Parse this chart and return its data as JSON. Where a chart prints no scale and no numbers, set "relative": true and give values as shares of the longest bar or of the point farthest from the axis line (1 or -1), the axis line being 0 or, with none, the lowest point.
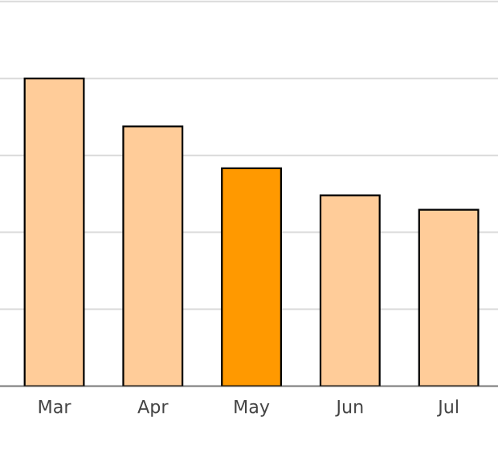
{
  "chart_data": {
    "type": "bar",
    "relative": true,
    "categories": [
      "Mar",
      "Apr",
      "May",
      "Jun",
      "Jul"
    ],
    "values": [
      1,
      0.844,
      0.708,
      0.62,
      0.573
    ],
    "colors": [
      "#ffcc99",
      "#ffcc99",
      "#ff9900",
      "#ffcc99",
      "#ffcc99"
    ],
    "grid": "y",
    "legend": false
  }
}
